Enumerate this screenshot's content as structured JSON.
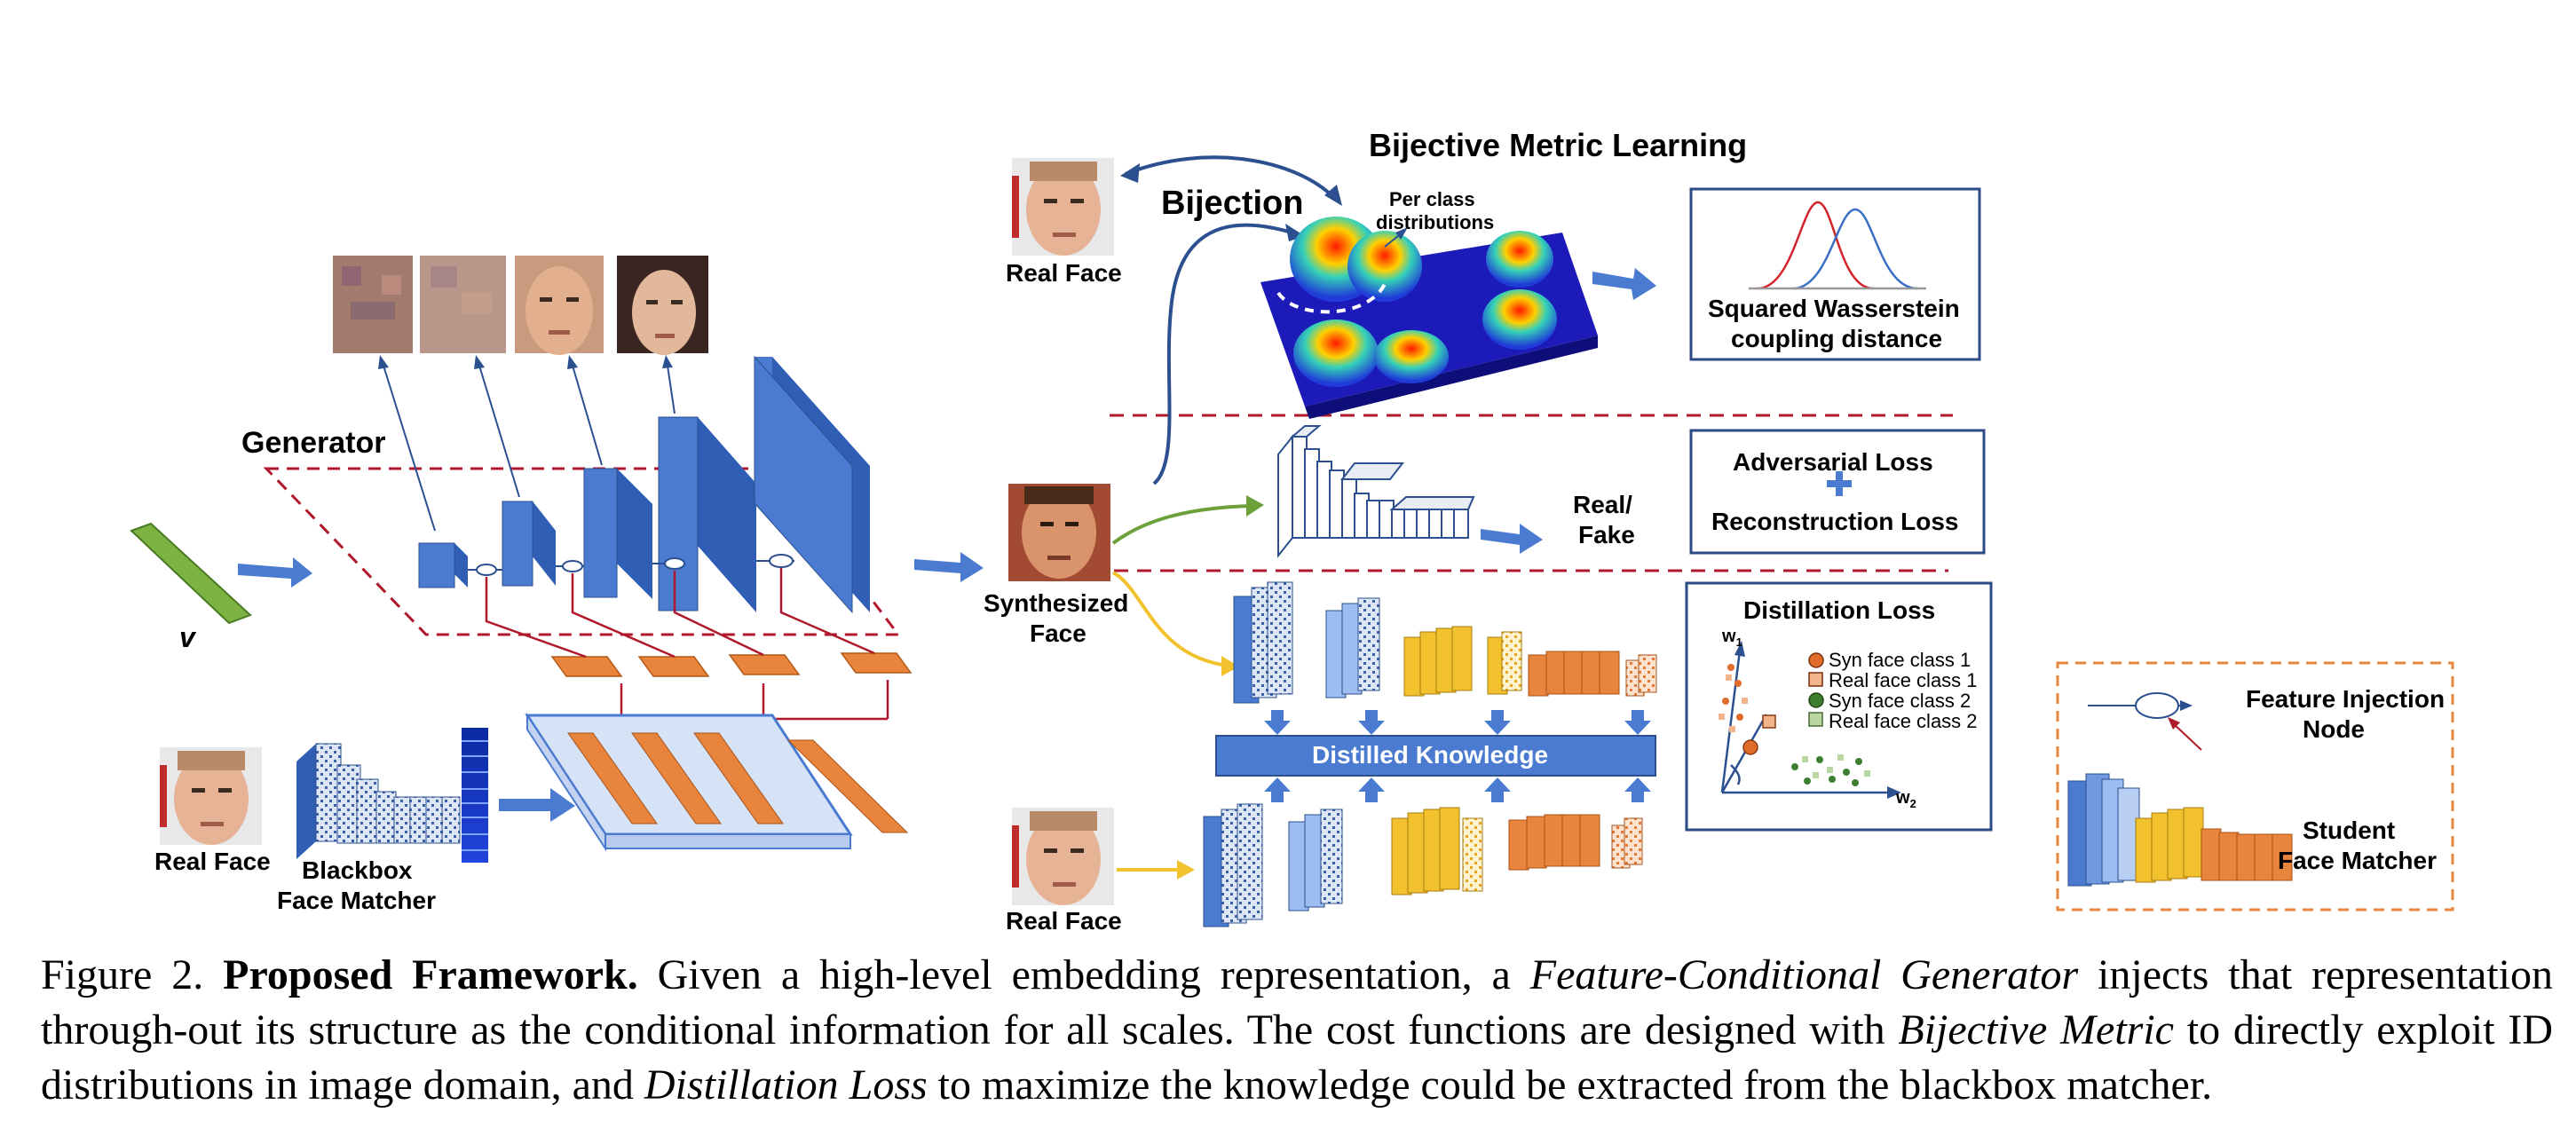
{
  "labels": {
    "generator": "Generator",
    "v": "v",
    "real_face": "Real Face",
    "blackbox_line1": "Blackbox",
    "blackbox_line2": "Face Matcher",
    "synth_line1": "Synthesized",
    "synth_line2": "Face",
    "bijective_title": "Bijective Metric Learning",
    "bijection": "Bijection",
    "per_class_line1": "Per class",
    "per_class_line2": "distributions",
    "wasserstein_line1": "Squared Wasserstein",
    "wasserstein_line2": "coupling distance",
    "real_fake_line1": "Real/",
    "real_fake_line2": "Fake",
    "adversarial_loss": "Adversarial Loss",
    "reconstruction_loss": "Reconstruction Loss",
    "distillation_loss": "Distillation Loss",
    "distilled_knowledge": "Distilled Knowledge",
    "w1": "w",
    "w1_sub": "1",
    "w2": "w",
    "w2_sub": "2",
    "feature_injection_line1": "Feature Injection",
    "feature_injection_line2": "Node",
    "student_line1": "Student",
    "student_line2": "Face Matcher"
  },
  "legend": [
    {
      "label": "Syn face class 1",
      "color": "#e06b2a",
      "shape": "circle"
    },
    {
      "label": "Real face class 1",
      "color": "#f2b48a",
      "shape": "square"
    },
    {
      "label": "Syn face class 2",
      "color": "#3f7d2e",
      "shape": "circle"
    },
    {
      "label": "Real face class 2",
      "color": "#b9d6a3",
      "shape": "square"
    }
  ],
  "caption": {
    "figure_label": "Figure 2.",
    "bold_title": "Proposed Framework.",
    "text_1": " Given a high-level embedding representation, a ",
    "italic_1": "Feature-Conditional Generator",
    "text_2": " injects that representation through-out its structure as the conditional information for all scales.  The cost functions are designed with ",
    "italic_2": "Bijective Metric",
    "text_3": " to directly exploit ID distributions in image domain, and ",
    "italic_3": "Distillation Loss",
    "text_4": " to maximize the knowledge could be extracted from the blackbox matcher."
  },
  "colors": {
    "blue": "#4a7bd0",
    "dark_blue": "#2b4f8f",
    "orange": "#e8843c",
    "yellow": "#f2c12e",
    "green": "#6ca13a",
    "red_dash": "#b0182c",
    "box_border": "#2c4a86"
  }
}
